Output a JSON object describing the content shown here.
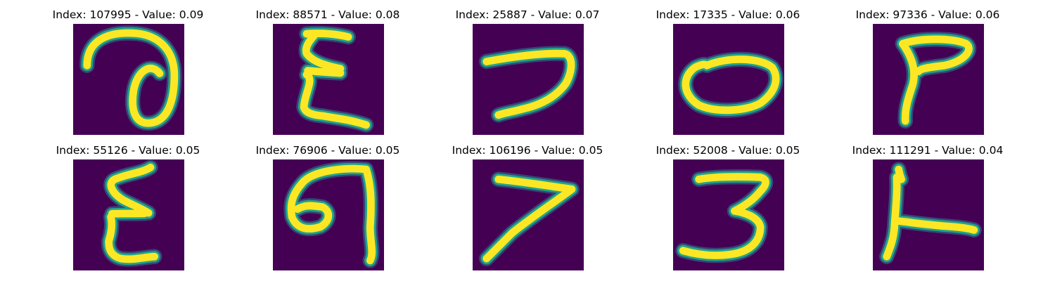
{
  "colors": {
    "background": "#440154",
    "stroke": "#fde725",
    "stroke_edge": "#21a38c",
    "stroke_halo": "#2c7f8e"
  },
  "panels": [
    {
      "title": "Index: 107995 - Value: 0.09",
      "glyph": "handwritten-stroke-a"
    },
    {
      "title": "Index: 88571 - Value: 0.08",
      "glyph": "handwritten-stroke-b"
    },
    {
      "title": "Index: 25887 - Value: 0.07",
      "glyph": "handwritten-stroke-c"
    },
    {
      "title": "Index: 17335 - Value: 0.06",
      "glyph": "handwritten-stroke-d"
    },
    {
      "title": "Index: 97336 - Value: 0.06",
      "glyph": "handwritten-stroke-e"
    },
    {
      "title": "Index: 55126 - Value: 0.05",
      "glyph": "handwritten-stroke-f"
    },
    {
      "title": "Index: 76906 - Value: 0.05",
      "glyph": "handwritten-stroke-g"
    },
    {
      "title": "Index: 106196 - Value: 0.05",
      "glyph": "handwritten-stroke-h"
    },
    {
      "title": "Index: 52008 - Value: 0.05",
      "glyph": "handwritten-stroke-i"
    },
    {
      "title": "Index: 111291 - Value: 0.04",
      "glyph": "handwritten-stroke-j"
    }
  ]
}
